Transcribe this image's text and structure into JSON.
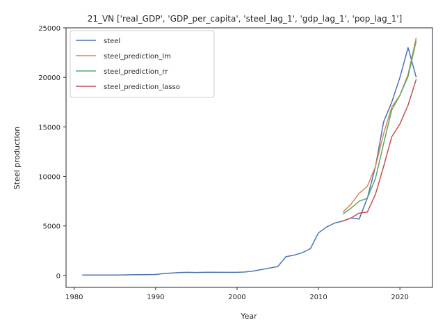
{
  "chart_data": {
    "type": "line",
    "title": "21_VN ['real_GDP', 'GDP_per_capita', 'steel_lag_1', 'gdp_lag_1', 'pop_lag_1']",
    "xlabel": "Year",
    "ylabel": "Steel production",
    "xlim": [
      1979,
      2024
    ],
    "ylim": [
      -1200,
      25000
    ],
    "xticks": [
      1980,
      1990,
      2000,
      2010,
      2020
    ],
    "xtick_labels": [
      "1980",
      "1990",
      "2000",
      "2010",
      "2020"
    ],
    "yticks": [
      0,
      5000,
      10000,
      15000,
      20000,
      25000
    ],
    "ytick_labels": [
      "0",
      "5000",
      "10000",
      "15000",
      "20000",
      "25000"
    ],
    "grid": false,
    "legend_position": "top-left",
    "series": [
      {
        "name": "steel",
        "color": "#4c72b0",
        "x": [
          1981,
          1982,
          1983,
          1984,
          1985,
          1986,
          1987,
          1988,
          1989,
          1990,
          1991,
          1992,
          1993,
          1994,
          1995,
          1996,
          1997,
          1998,
          1999,
          2000,
          2001,
          2002,
          2003,
          2004,
          2005,
          2006,
          2007,
          2008,
          2009,
          2010,
          2011,
          2012,
          2013,
          2014,
          2015,
          2016,
          2017,
          2018,
          2019,
          2020,
          2021,
          2022
        ],
        "y": [
          50,
          50,
          50,
          50,
          50,
          60,
          70,
          80,
          90,
          100,
          200,
          250,
          300,
          320,
          300,
          320,
          330,
          320,
          320,
          320,
          350,
          450,
          600,
          750,
          900,
          1900,
          2050,
          2300,
          2700,
          4300,
          4900,
          5300,
          5500,
          5800,
          5700,
          7800,
          11000,
          15500,
          17500,
          20000,
          23000,
          20000
        ]
      },
      {
        "name": "steel_prediction_lm",
        "color": "#dd8452",
        "x": [
          2013,
          2014,
          2015,
          2016,
          2017,
          2018,
          2019,
          2020,
          2021,
          2022
        ],
        "y": [
          6400,
          7200,
          8300,
          9000,
          11000,
          14300,
          17000,
          18200,
          20300,
          24000
        ]
      },
      {
        "name": "steel_prediction_rr",
        "color": "#55a868",
        "x": [
          2013,
          2014,
          2015,
          2016,
          2017,
          2018,
          2019,
          2020,
          2021,
          2022
        ],
        "y": [
          6200,
          6800,
          7500,
          7800,
          9800,
          13300,
          16700,
          18200,
          20100,
          23700
        ]
      },
      {
        "name": "steel_prediction_lasso",
        "color": "#c44e52",
        "x": [
          2013,
          2014,
          2015,
          2016,
          2017,
          2018,
          2019,
          2020,
          2021,
          2022
        ],
        "y": [
          5500,
          5800,
          6300,
          6400,
          8200,
          11000,
          14000,
          15300,
          17200,
          19800
        ]
      }
    ]
  }
}
